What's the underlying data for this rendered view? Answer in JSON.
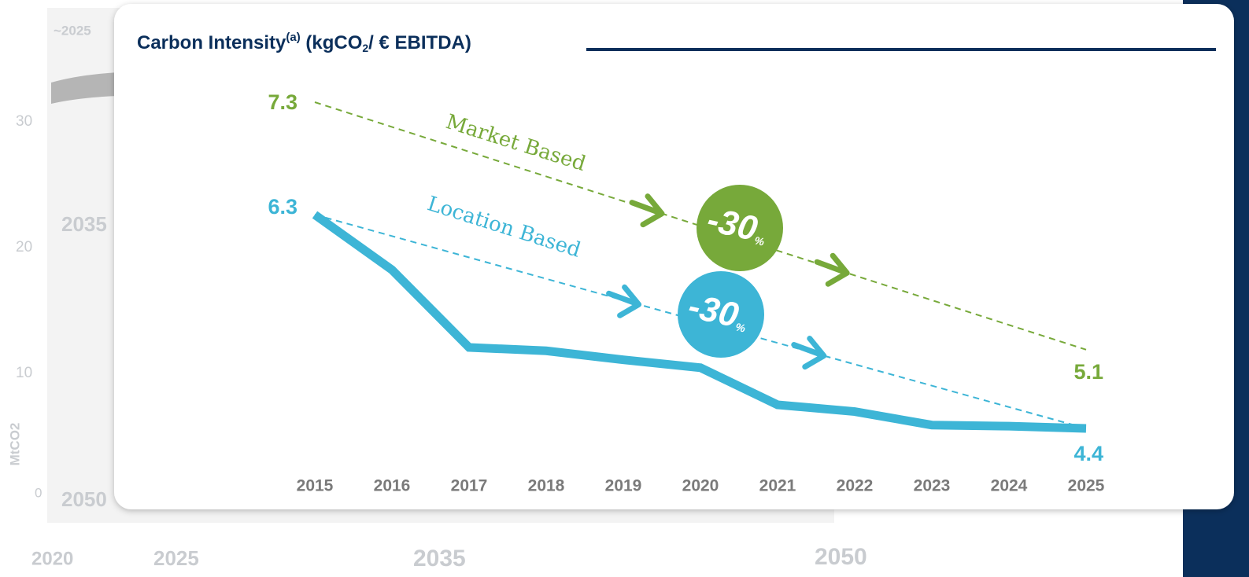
{
  "chart_data": {
    "type": "line",
    "title": [
      "Carbon Intensity",
      "(a)",
      " (kgCO",
      "2",
      "/ € EBITDA)"
    ],
    "categories": [
      "2015",
      "2016",
      "2017",
      "2018",
      "2019",
      "2020",
      "2021",
      "2022",
      "2023",
      "2024",
      "2025"
    ],
    "series": [
      {
        "name": "Location Based",
        "color": "#3db5d6",
        "values": [
          6.3,
          5.81,
          5.12,
          5.09,
          5.01,
          4.94,
          4.61,
          4.55,
          4.43,
          4.42,
          4.4
        ]
      }
    ],
    "trends": [
      {
        "name": "Market Based",
        "color": "#77a93a",
        "values": [
          7.3,
          5.1
        ]
      },
      {
        "name": "Location Based",
        "color": "#3db5d6",
        "values": [
          6.3,
          4.4
        ]
      }
    ],
    "badges": [
      {
        "value": -30,
        "unit": "%",
        "color": "#77a93a"
      },
      {
        "value": -30,
        "unit": "%",
        "color": "#3db5d6"
      }
    ],
    "background_texts": [
      "~2025",
      "2035",
      "2050",
      "30",
      "20",
      "10",
      "0",
      "MtCO2",
      "2020",
      "2025",
      "2035",
      "2050"
    ]
  }
}
